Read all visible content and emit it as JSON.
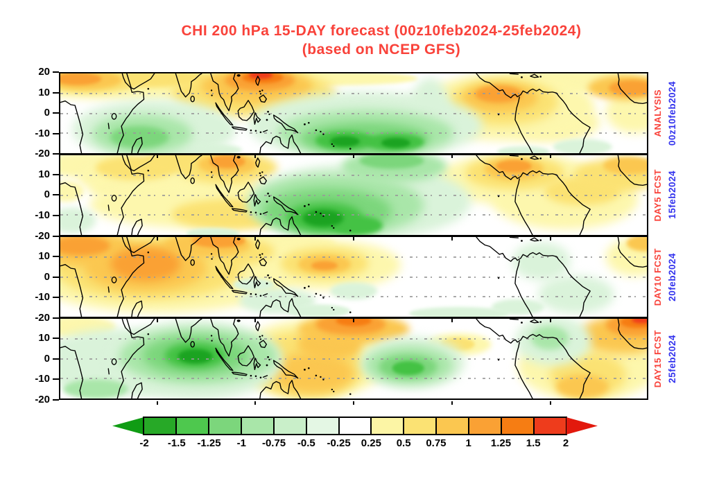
{
  "chart_data": {
    "type": "heatmap",
    "title": "CHI 200 hPa 15-DAY forecast (00z10feb2024-25feb2024)",
    "subtitle": "(based on NCEP GFS)",
    "title_color": "#f9423a",
    "panel_label_color": "#f9423a",
    "date_label_color": "#3434ee",
    "y_axis": {
      "tick_labels": [
        "20",
        "10",
        "0",
        "-10",
        "-20"
      ],
      "lat_range": [
        -20,
        20
      ]
    },
    "grid": "dotted horizontal lines at lat 10, 0, -10 in each panel",
    "legend_position": "bottom",
    "panels": [
      {
        "id": "analysis",
        "label": "ANALYSIS",
        "date": "00z10feb2024",
        "blobs": [
          [
            12,
            12,
            46,
            42,
            "y0"
          ],
          [
            45,
            6,
            32,
            18,
            "y0"
          ],
          [
            88,
            10,
            26,
            30,
            "y0"
          ],
          [
            98,
            48,
            10,
            55,
            "y0"
          ],
          [
            84,
            62,
            16,
            48,
            "y0"
          ],
          [
            76,
            42,
            30,
            85,
            "y0"
          ],
          [
            5,
            10,
            16,
            30,
            "y1"
          ],
          [
            15,
            6,
            20,
            24,
            "y1"
          ],
          [
            33,
            25,
            28,
            60,
            "y1"
          ],
          [
            75.5,
            36,
            19,
            58,
            "y1"
          ],
          [
            4,
            8,
            13,
            24,
            "y2"
          ],
          [
            33.5,
            16,
            19,
            42,
            "y2"
          ],
          [
            75,
            30,
            13,
            38,
            "y2"
          ],
          [
            96.5,
            18,
            13,
            32,
            "y2"
          ],
          [
            3,
            7,
            8,
            16,
            "o1"
          ],
          [
            34,
            9,
            12,
            26,
            "o1"
          ],
          [
            74.7,
            26,
            8,
            22,
            "o1"
          ],
          [
            97.5,
            18,
            8,
            20,
            "o1"
          ],
          [
            34.5,
            5,
            7,
            15,
            "o2"
          ],
          [
            34.2,
            2,
            4,
            9,
            "r1"
          ],
          [
            16,
            70,
            28,
            75,
            "g0"
          ],
          [
            52,
            65,
            40,
            85,
            "g0"
          ],
          [
            63,
            50,
            7,
            90,
            "g0"
          ],
          [
            89,
            92,
            10,
            20,
            "g0"
          ],
          [
            79,
            98,
            9,
            14,
            "g0"
          ],
          [
            22,
            96,
            18,
            18,
            "g0"
          ],
          [
            14,
            76,
            17,
            48,
            "g1"
          ],
          [
            52,
            75,
            30,
            58,
            "g1"
          ],
          [
            13.5,
            80,
            10,
            28,
            "g2"
          ],
          [
            52,
            82,
            22,
            40,
            "g2"
          ],
          [
            48.5,
            84,
            10,
            24,
            "g3"
          ],
          [
            57,
            86,
            10,
            22,
            "g3"
          ],
          [
            48.5,
            85,
            5,
            13,
            "g4"
          ],
          [
            57.2,
            87,
            5,
            12,
            "g4"
          ]
        ]
      },
      {
        "id": "day5",
        "label": "DAY5 FCST",
        "date": "15feb2024",
        "blobs": [
          [
            5,
            12,
            18,
            32,
            "y0"
          ],
          [
            14,
            28,
            22,
            45,
            "y0"
          ],
          [
            19,
            40,
            28,
            55,
            "y0"
          ],
          [
            24,
            62,
            38,
            60,
            "y0"
          ],
          [
            78,
            30,
            28,
            65,
            "y0"
          ],
          [
            86,
            55,
            25,
            75,
            "y0"
          ],
          [
            1,
            45,
            6,
            26,
            "y0"
          ],
          [
            13,
            16,
            14,
            30,
            "y1"
          ],
          [
            22,
            8,
            16,
            26,
            "y1"
          ],
          [
            28.5,
            16,
            17,
            40,
            "y1"
          ],
          [
            29,
            74,
            20,
            38,
            "y1"
          ],
          [
            77.5,
            22,
            17,
            42,
            "y1"
          ],
          [
            89,
            45,
            13,
            36,
            "y1"
          ],
          [
            95,
            25,
            15,
            42,
            "y1"
          ],
          [
            28.5,
            11,
            10,
            26,
            "y2"
          ],
          [
            77.3,
            17,
            10,
            28,
            "y2"
          ],
          [
            97,
            13,
            9,
            22,
            "y2"
          ],
          [
            28.5,
            8,
            6,
            16,
            "o1"
          ],
          [
            77.3,
            14,
            6,
            16,
            "o1"
          ],
          [
            2,
            82,
            8,
            32,
            "g0"
          ],
          [
            26,
            98,
            9,
            14,
            "g0"
          ],
          [
            51,
            58,
            38,
            95,
            "g0"
          ],
          [
            47,
            63,
            30,
            78,
            "g1"
          ],
          [
            57,
            14,
            18,
            40,
            "g1"
          ],
          [
            45.5,
            70,
            22,
            58,
            "g2"
          ],
          [
            56.5,
            7,
            11,
            20,
            "g2"
          ],
          [
            45,
            78,
            13,
            38,
            "g3"
          ],
          [
            50.5,
            88,
            9,
            24,
            "g3"
          ],
          [
            44.8,
            79,
            7,
            22,
            "g4"
          ]
        ]
      },
      {
        "id": "day10",
        "label": "DAY10 FCST",
        "date": "20feb2024",
        "blobs": [
          [
            17,
            45,
            46,
            100,
            "y0"
          ],
          [
            31,
            8,
            32,
            26,
            "y0"
          ],
          [
            45,
            35,
            26,
            62,
            "y0"
          ],
          [
            98,
            25,
            10,
            48,
            "y0"
          ],
          [
            0.5,
            50,
            6,
            32,
            "y0"
          ],
          [
            15,
            40,
            32,
            78,
            "y1"
          ],
          [
            26,
            18,
            21,
            42,
            "y1"
          ],
          [
            45,
            33,
            15,
            40,
            "y1"
          ],
          [
            4,
            15,
            17,
            42,
            "y2"
          ],
          [
            14.5,
            38,
            21,
            60,
            "y2"
          ],
          [
            25,
            10,
            15,
            30,
            "y2"
          ],
          [
            45,
            34,
            9,
            24,
            "y2"
          ],
          [
            99.5,
            8,
            6,
            20,
            "y2"
          ],
          [
            3.5,
            11,
            10,
            25,
            "o1"
          ],
          [
            14.5,
            34,
            12,
            42,
            "o1"
          ],
          [
            27,
            5,
            9,
            17,
            "o1"
          ],
          [
            45,
            36,
            4.5,
            11,
            "o1"
          ],
          [
            37,
            80,
            13,
            32,
            "g0"
          ],
          [
            44,
            93,
            11,
            17,
            "g0"
          ],
          [
            50,
            68,
            8,
            22,
            "g0"
          ],
          [
            33,
            60,
            7,
            16,
            "g0"
          ],
          [
            68,
            96,
            17,
            16,
            "g0"
          ],
          [
            82,
            30,
            10,
            48,
            "g0"
          ],
          [
            88,
            72,
            13,
            48,
            "g0"
          ],
          [
            78,
            88,
            9,
            20,
            "g0"
          ]
        ]
      },
      {
        "id": "day15",
        "label": "DAY15 FCST",
        "date": "25feb2024",
        "blobs": [
          [
            3,
            10,
            13,
            28,
            "y0"
          ],
          [
            43,
            50,
            26,
            100,
            "y0"
          ],
          [
            68,
            32,
            11,
            28,
            "y0"
          ],
          [
            90,
            60,
            24,
            85,
            "y0"
          ],
          [
            42,
            57,
            20,
            85,
            "y1"
          ],
          [
            67.7,
            32,
            6,
            17,
            "y1"
          ],
          [
            90,
            70,
            13,
            55,
            "y1"
          ],
          [
            43,
            68,
            14,
            50,
            "y2"
          ],
          [
            46,
            32,
            11,
            40,
            "y2"
          ],
          [
            50,
            13,
            19,
            38,
            "y2"
          ],
          [
            89,
            85,
            9,
            30,
            "y2"
          ],
          [
            96,
            20,
            15,
            48,
            "y2"
          ],
          [
            49.5,
            7,
            12,
            26,
            "o1"
          ],
          [
            98,
            8,
            10,
            28,
            "o1"
          ],
          [
            50,
            3,
            6,
            13,
            "o2"
          ],
          [
            98.5,
            4,
            6,
            15,
            "o2"
          ],
          [
            99.2,
            2,
            3.5,
            8,
            "r1"
          ],
          [
            10,
            55,
            28,
            85,
            "g0"
          ],
          [
            17,
            30,
            11,
            32,
            "g0"
          ],
          [
            23,
            52,
            30,
            100,
            "g0"
          ],
          [
            60,
            55,
            18,
            65,
            "g0"
          ],
          [
            84,
            28,
            13,
            62,
            "g0"
          ],
          [
            6,
            88,
            11,
            24,
            "g1"
          ],
          [
            23.5,
            47,
            27,
            70,
            "g1"
          ],
          [
            59.5,
            58,
            15,
            48,
            "g1"
          ],
          [
            83.5,
            24,
            6.5,
            30,
            "g1"
          ],
          [
            23,
            46,
            18,
            50,
            "g2"
          ],
          [
            59.3,
            60,
            10,
            30,
            "g2"
          ],
          [
            23,
            46,
            10.5,
            32,
            "g3"
          ],
          [
            59.3,
            62,
            5.5,
            17,
            "g3"
          ],
          [
            23,
            47,
            6,
            18,
            "g4"
          ]
        ]
      }
    ],
    "colorbar": {
      "levels": [
        "-2",
        "-1.5",
        "-1.25",
        "-1",
        "-0.75",
        "-0.5",
        "-0.25",
        "0.25",
        "0.5",
        "0.75",
        "1",
        "1.25",
        "1.5",
        "2"
      ],
      "segment_colors": [
        "#27a927",
        "#4ec84e",
        "#7cd67c",
        "#a9e6a9",
        "#c9efc9",
        "#e4f7e4",
        "#ffffff",
        "#fcf5a5",
        "#fbe273",
        "#fbc750",
        "#faa134",
        "#f67d13",
        "#ee3c1c"
      ],
      "arrow_left_color": "#109c14",
      "arrow_right_color": "#e2190d"
    },
    "palette": {
      "y0": "#fdf7ad",
      "y1": "#fbe273",
      "y2": "#fbc750",
      "o1": "#faa134",
      "o2": "#f67d13",
      "r1": "#ee3c1c",
      "g0": "#daf3da",
      "g1": "#a9e6a9",
      "g2": "#7cd67c",
      "g3": "#44c244",
      "g4": "#1ba321"
    }
  }
}
